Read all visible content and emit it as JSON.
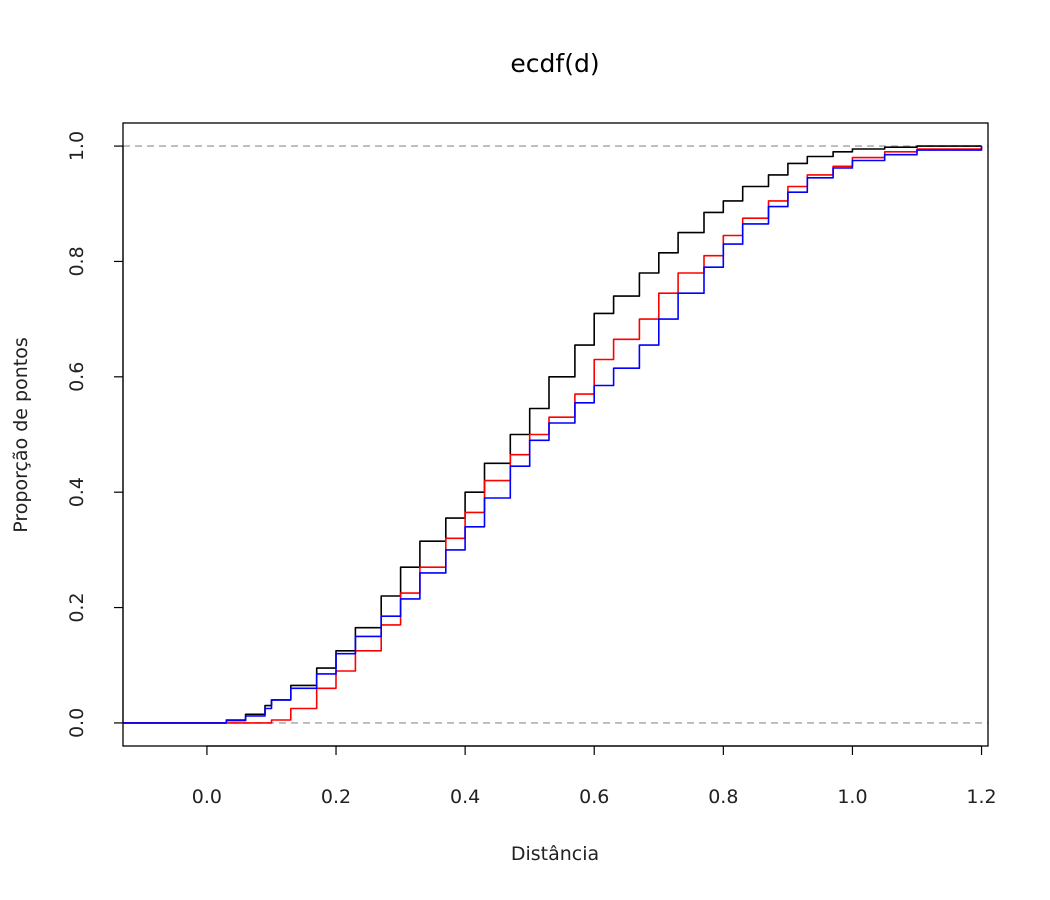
{
  "chart_data": {
    "type": "line",
    "title": "ecdf(d)",
    "xlabel": "Distância",
    "ylabel": "Proporção de pontos",
    "xlim": [
      -0.13,
      1.21
    ],
    "ylim": [
      -0.04,
      1.04
    ],
    "xticks": [
      0.0,
      0.2,
      0.4,
      0.6,
      0.8,
      1.0,
      1.2
    ],
    "xtick_labels": [
      "0.0",
      "0.2",
      "0.4",
      "0.6",
      "0.8",
      "1.0",
      "1.2"
    ],
    "yticks": [
      0.0,
      0.2,
      0.4,
      0.6,
      0.8,
      1.0
    ],
    "ytick_labels": [
      "0.0",
      "0.2",
      "0.4",
      "0.6",
      "0.8",
      "1.0"
    ],
    "reference_lines": [
      0,
      1
    ],
    "reference_line_color": "#b0b0b0",
    "grid": false,
    "legend": "none",
    "series": [
      {
        "color": "#000000",
        "x": [
          -0.13,
          0.0,
          0.03,
          0.06,
          0.09,
          0.1,
          0.13,
          0.17,
          0.2,
          0.23,
          0.27,
          0.3,
          0.33,
          0.37,
          0.4,
          0.43,
          0.47,
          0.5,
          0.53,
          0.57,
          0.6,
          0.63,
          0.67,
          0.7,
          0.73,
          0.77,
          0.8,
          0.83,
          0.87,
          0.9,
          0.93,
          0.97,
          1.0,
          1.05,
          1.1,
          1.2
        ],
        "y": [
          0.0,
          0.0,
          0.005,
          0.015,
          0.03,
          0.04,
          0.065,
          0.095,
          0.125,
          0.165,
          0.22,
          0.27,
          0.315,
          0.355,
          0.4,
          0.45,
          0.5,
          0.545,
          0.6,
          0.655,
          0.71,
          0.74,
          0.78,
          0.815,
          0.85,
          0.885,
          0.905,
          0.93,
          0.95,
          0.97,
          0.982,
          0.99,
          0.995,
          0.998,
          1.0,
          1.0
        ]
      },
      {
        "color": "#ff0000",
        "x": [
          -0.13,
          0.0,
          0.03,
          0.06,
          0.09,
          0.1,
          0.13,
          0.17,
          0.2,
          0.23,
          0.27,
          0.3,
          0.33,
          0.37,
          0.4,
          0.43,
          0.47,
          0.5,
          0.53,
          0.57,
          0.6,
          0.63,
          0.67,
          0.7,
          0.73,
          0.77,
          0.8,
          0.83,
          0.87,
          0.9,
          0.93,
          0.97,
          1.0,
          1.05,
          1.1,
          1.2
        ],
        "y": [
          0.0,
          0.0,
          0.0,
          0.0,
          0.0,
          0.005,
          0.025,
          0.06,
          0.09,
          0.125,
          0.17,
          0.225,
          0.27,
          0.32,
          0.365,
          0.42,
          0.465,
          0.5,
          0.53,
          0.57,
          0.63,
          0.665,
          0.7,
          0.745,
          0.78,
          0.81,
          0.845,
          0.875,
          0.905,
          0.93,
          0.95,
          0.965,
          0.98,
          0.99,
          0.995,
          1.0
        ]
      },
      {
        "color": "#0000ff",
        "x": [
          -0.13,
          0.0,
          0.03,
          0.06,
          0.09,
          0.1,
          0.13,
          0.17,
          0.2,
          0.23,
          0.27,
          0.3,
          0.33,
          0.37,
          0.4,
          0.43,
          0.47,
          0.5,
          0.53,
          0.57,
          0.6,
          0.63,
          0.67,
          0.7,
          0.73,
          0.77,
          0.8,
          0.83,
          0.87,
          0.9,
          0.93,
          0.97,
          1.0,
          1.05,
          1.1,
          1.2
        ],
        "y": [
          0.0,
          0.0,
          0.004,
          0.012,
          0.025,
          0.04,
          0.06,
          0.085,
          0.12,
          0.15,
          0.185,
          0.215,
          0.26,
          0.3,
          0.34,
          0.39,
          0.445,
          0.49,
          0.52,
          0.555,
          0.585,
          0.615,
          0.655,
          0.7,
          0.745,
          0.79,
          0.83,
          0.865,
          0.895,
          0.92,
          0.945,
          0.962,
          0.975,
          0.985,
          0.993,
          1.0
        ]
      }
    ]
  }
}
